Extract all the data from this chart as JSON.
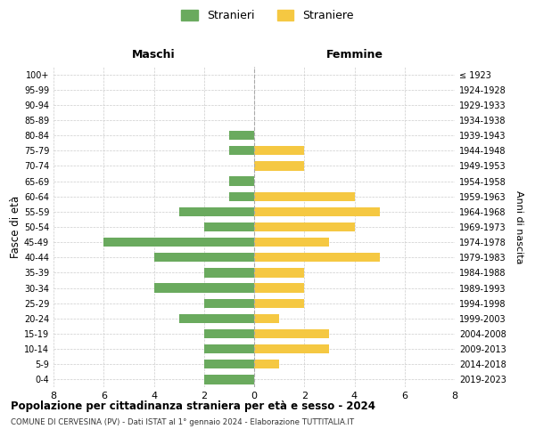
{
  "age_groups": [
    "100+",
    "95-99",
    "90-94",
    "85-89",
    "80-84",
    "75-79",
    "70-74",
    "65-69",
    "60-64",
    "55-59",
    "50-54",
    "45-49",
    "40-44",
    "35-39",
    "30-34",
    "25-29",
    "20-24",
    "15-19",
    "10-14",
    "5-9",
    "0-4"
  ],
  "birth_years": [
    "≤ 1923",
    "1924-1928",
    "1929-1933",
    "1934-1938",
    "1939-1943",
    "1944-1948",
    "1949-1953",
    "1954-1958",
    "1959-1963",
    "1964-1968",
    "1969-1973",
    "1974-1978",
    "1979-1983",
    "1984-1988",
    "1989-1993",
    "1994-1998",
    "1999-2003",
    "2004-2008",
    "2009-2013",
    "2014-2018",
    "2019-2023"
  ],
  "maschi": [
    0,
    0,
    0,
    0,
    1,
    1,
    0,
    1,
    1,
    3,
    2,
    6,
    4,
    2,
    4,
    2,
    3,
    2,
    2,
    2,
    2
  ],
  "femmine": [
    0,
    0,
    0,
    0,
    0,
    2,
    2,
    0,
    4,
    5,
    4,
    3,
    5,
    2,
    2,
    2,
    1,
    3,
    3,
    1,
    0
  ],
  "maschi_color": "#6aaa5e",
  "femmine_color": "#f5c842",
  "background_color": "#ffffff",
  "grid_color": "#cccccc",
  "title": "Popolazione per cittadinanza straniera per età e sesso - 2024",
  "subtitle": "COMUNE DI CERVESINA (PV) - Dati ISTAT al 1° gennaio 2024 - Elaborazione TUTTITALIA.IT",
  "xlabel_left": "Maschi",
  "xlabel_right": "Femmine",
  "ylabel_left": "Fasce di età",
  "ylabel_right": "Anni di nascita",
  "legend_stranieri": "Stranieri",
  "legend_straniere": "Straniere",
  "xlim": 8
}
